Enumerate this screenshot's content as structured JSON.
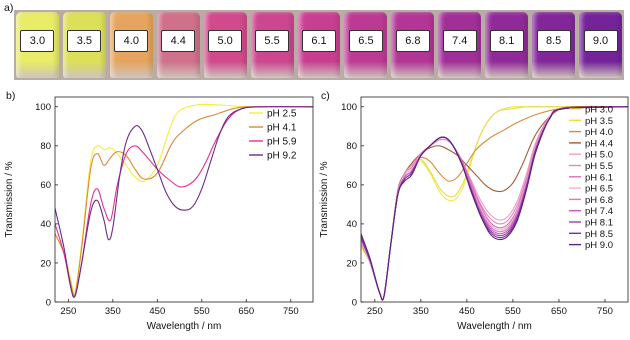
{
  "photo": {
    "panel_letter": "a)",
    "vials": [
      {
        "label": "3.0",
        "color": "#e8ec66"
      },
      {
        "label": "3.5",
        "color": "#dcdf58"
      },
      {
        "label": "4.0",
        "color": "#e6a45e"
      },
      {
        "label": "4.4",
        "color": "#d0708a"
      },
      {
        "label": "5.0",
        "color": "#d04a8c"
      },
      {
        "label": "5.5",
        "color": "#cc4690"
      },
      {
        "label": "6.1",
        "color": "#c83f92"
      },
      {
        "label": "6.5",
        "color": "#bd3a94"
      },
      {
        "label": "6.8",
        "color": "#b33596"
      },
      {
        "label": "7.4",
        "color": "#a12f98"
      },
      {
        "label": "8.1",
        "color": "#912a99"
      },
      {
        "label": "8.5",
        "color": "#82279a"
      },
      {
        "label": "9.0",
        "color": "#74239a"
      }
    ]
  },
  "chart_data": [
    {
      "type": "line",
      "panel_letter": "b)",
      "xlabel": "Wavelength / nm",
      "ylabel": "Transmission / %",
      "xlim": [
        220,
        800
      ],
      "ylim": [
        0,
        105
      ],
      "xticks": [
        250,
        350,
        450,
        550,
        650,
        750
      ],
      "yticks": [
        0,
        20,
        40,
        60,
        80,
        100
      ],
      "grid": false,
      "legend_position": "right",
      "series": [
        {
          "name": "pH 2.5",
          "color": "#f4ee3a",
          "x": [
            220,
            240,
            255,
            265,
            280,
            300,
            315,
            330,
            345,
            360,
            380,
            400,
            420,
            450,
            480,
            500,
            540,
            580,
            650,
            700,
            800
          ],
          "y": [
            35,
            25,
            12,
            5,
            30,
            72,
            80,
            78,
            79,
            76,
            70,
            64,
            62,
            70,
            90,
            98,
            101,
            101,
            100,
            100,
            100
          ]
        },
        {
          "name": "pH 4.1",
          "color": "#d98a35",
          "x": [
            220,
            240,
            255,
            265,
            280,
            300,
            315,
            330,
            345,
            360,
            380,
            400,
            420,
            450,
            480,
            500,
            540,
            580,
            620,
            650,
            700,
            800
          ],
          "y": [
            35,
            25,
            10,
            4,
            28,
            68,
            76,
            70,
            74,
            77,
            75,
            68,
            63,
            66,
            80,
            86,
            93,
            96,
            99,
            100,
            100,
            100
          ]
        },
        {
          "name": "pH 5.9",
          "color": "#e0338f",
          "x": [
            220,
            240,
            255,
            265,
            280,
            300,
            315,
            330,
            345,
            360,
            380,
            400,
            420,
            450,
            480,
            500,
            520,
            540,
            560,
            580,
            610,
            640,
            680,
            800
          ],
          "y": [
            40,
            25,
            8,
            3,
            20,
            50,
            58,
            48,
            42,
            60,
            76,
            80,
            76,
            68,
            62,
            59,
            60,
            64,
            72,
            82,
            94,
            99,
            100,
            100
          ]
        },
        {
          "name": "pH 9.2",
          "color": "#6b2a8c",
          "x": [
            220,
            240,
            255,
            265,
            280,
            300,
            315,
            330,
            340,
            350,
            365,
            380,
            400,
            415,
            430,
            450,
            470,
            490,
            510,
            530,
            550,
            570,
            590,
            610,
            640,
            680,
            800
          ],
          "y": [
            48,
            28,
            8,
            3,
            20,
            46,
            52,
            42,
            32,
            38,
            64,
            82,
            90,
            88,
            80,
            68,
            56,
            49,
            47,
            49,
            58,
            72,
            86,
            95,
            99,
            100,
            100
          ]
        }
      ]
    },
    {
      "type": "line",
      "panel_letter": "c)",
      "xlabel": "Wavelength / nm",
      "ylabel": "Transmission / %",
      "xlim": [
        220,
        800
      ],
      "ylim": [
        0,
        105
      ],
      "xticks": [
        250,
        350,
        450,
        550,
        650,
        750
      ],
      "yticks": [
        0,
        20,
        40,
        60,
        80,
        100
      ],
      "grid": false,
      "legend_position": "right",
      "series": [
        {
          "name": "pH 3.0",
          "color": "#f3e940",
          "x": [
            220,
            240,
            260,
            270,
            285,
            300,
            315,
            330,
            350,
            370,
            395,
            420,
            440,
            460,
            480,
            500,
            520,
            550,
            580,
            620,
            660,
            800
          ],
          "y": [
            28,
            20,
            5,
            3,
            30,
            55,
            66,
            70,
            72,
            66,
            55,
            52,
            58,
            72,
            86,
            94,
            98,
            100,
            100,
            100,
            100,
            100
          ]
        },
        {
          "name": "pH 3.5",
          "color": "#e5dc4e",
          "x": [
            220,
            240,
            260,
            270,
            285,
            300,
            315,
            330,
            350,
            370,
            395,
            420,
            440,
            460,
            480,
            500,
            520,
            550,
            580,
            620,
            660,
            800
          ],
          "y": [
            29,
            20,
            5,
            3,
            30,
            56,
            66,
            70,
            73,
            67,
            57,
            54,
            60,
            73,
            86,
            94,
            98,
            99,
            100,
            100,
            100,
            100
          ]
        },
        {
          "name": "pH 4.0",
          "color": "#d48d3c",
          "x": [
            220,
            240,
            260,
            270,
            285,
            300,
            315,
            330,
            350,
            370,
            390,
            410,
            430,
            450,
            470,
            500,
            530,
            560,
            600,
            650,
            700,
            800
          ],
          "y": [
            30,
            20,
            5,
            3,
            30,
            57,
            66,
            70,
            74,
            72,
            66,
            62,
            64,
            71,
            78,
            84,
            88,
            92,
            96,
            99,
            100,
            100
          ]
        },
        {
          "name": "pH 4.4",
          "color": "#a25c33",
          "x": [
            220,
            240,
            260,
            270,
            285,
            300,
            315,
            330,
            350,
            370,
            390,
            410,
            430,
            450,
            470,
            490,
            510,
            530,
            550,
            570,
            600,
            640,
            680,
            800
          ],
          "y": [
            32,
            20,
            5,
            3,
            30,
            57,
            66,
            71,
            76,
            79,
            80,
            78,
            75,
            70,
            65,
            60,
            57,
            57,
            61,
            70,
            86,
            97,
            100,
            100
          ]
        },
        {
          "name": "pH 5.0",
          "color": "#ef9ec9",
          "x": [
            220,
            240,
            260,
            270,
            285,
            300,
            315,
            330,
            350,
            370,
            390,
            405,
            420,
            440,
            460,
            480,
            500,
            520,
            540,
            560,
            580,
            600,
            630,
            660,
            800
          ],
          "y": [
            30,
            20,
            5,
            3,
            30,
            56,
            66,
            70,
            76,
            80,
            83,
            83,
            80,
            72,
            62,
            52,
            45,
            42,
            44,
            52,
            66,
            82,
            95,
            99,
            100
          ]
        },
        {
          "name": "pH 5.5",
          "color": "#e487c0",
          "x": [
            220,
            240,
            260,
            270,
            285,
            300,
            315,
            330,
            350,
            370,
            390,
            405,
            420,
            440,
            460,
            480,
            500,
            520,
            540,
            560,
            580,
            600,
            630,
            660,
            800
          ],
          "y": [
            30,
            20,
            5,
            3,
            30,
            56,
            66,
            69,
            76,
            80,
            83,
            83,
            80,
            72,
            61,
            50,
            43,
            40,
            42,
            50,
            64,
            81,
            95,
            99,
            100
          ]
        },
        {
          "name": "pH 6.1",
          "color": "#db6cb5",
          "x": [
            220,
            240,
            260,
            270,
            285,
            300,
            315,
            330,
            350,
            370,
            390,
            405,
            420,
            440,
            460,
            480,
            500,
            520,
            540,
            560,
            580,
            600,
            630,
            660,
            800
          ],
          "y": [
            31,
            20,
            5,
            3,
            30,
            56,
            65,
            68,
            75,
            80,
            84,
            84,
            80,
            72,
            60,
            49,
            41,
            38,
            40,
            48,
            63,
            80,
            94,
            99,
            100
          ]
        },
        {
          "name": "pH 6.5",
          "color": "#f0b0d6",
          "x": [
            220,
            240,
            260,
            270,
            285,
            300,
            315,
            330,
            350,
            370,
            390,
            405,
            420,
            440,
            460,
            480,
            500,
            520,
            540,
            560,
            580,
            600,
            630,
            660,
            800
          ],
          "y": [
            31,
            20,
            5,
            3,
            30,
            56,
            65,
            68,
            75,
            80,
            84,
            84,
            80,
            71,
            59,
            48,
            40,
            37,
            39,
            47,
            62,
            80,
            94,
            99,
            100
          ]
        },
        {
          "name": "pH 6.8",
          "color": "#d37bc6",
          "x": [
            220,
            240,
            260,
            270,
            285,
            300,
            315,
            330,
            350,
            370,
            390,
            405,
            420,
            440,
            460,
            480,
            500,
            520,
            540,
            560,
            580,
            600,
            630,
            660,
            800
          ],
          "y": [
            32,
            21,
            5,
            3,
            30,
            56,
            64,
            67,
            75,
            80,
            84,
            84,
            80,
            71,
            59,
            47,
            39,
            36,
            38,
            46,
            61,
            79,
            94,
            99,
            100
          ]
        },
        {
          "name": "pH 7.4",
          "color": "#c45ab8",
          "x": [
            220,
            240,
            260,
            270,
            285,
            300,
            315,
            330,
            350,
            370,
            390,
            405,
            420,
            440,
            460,
            480,
            500,
            520,
            540,
            560,
            580,
            600,
            630,
            660,
            800
          ],
          "y": [
            32,
            21,
            5,
            3,
            30,
            55,
            64,
            67,
            75,
            80,
            84,
            84,
            80,
            71,
            58,
            46,
            38,
            35,
            37,
            45,
            60,
            79,
            94,
            99,
            100
          ]
        },
        {
          "name": "pH 8.1",
          "color": "#9c3fa8",
          "x": [
            220,
            240,
            260,
            270,
            285,
            300,
            315,
            330,
            350,
            370,
            390,
            405,
            420,
            440,
            460,
            480,
            500,
            520,
            540,
            560,
            580,
            600,
            630,
            660,
            800
          ],
          "y": [
            33,
            21,
            5,
            3,
            30,
            55,
            63,
            66,
            75,
            80,
            84,
            84,
            80,
            70,
            57,
            45,
            37,
            34,
            36,
            44,
            60,
            78,
            94,
            99,
            100
          ]
        },
        {
          "name": "pH 8.5",
          "color": "#7d2f98",
          "x": [
            220,
            240,
            260,
            270,
            285,
            300,
            315,
            330,
            350,
            370,
            390,
            405,
            420,
            440,
            460,
            480,
            500,
            520,
            540,
            560,
            580,
            600,
            630,
            660,
            800
          ],
          "y": [
            34,
            21,
            5,
            3,
            30,
            55,
            63,
            66,
            75,
            80,
            84,
            84,
            80,
            70,
            57,
            44,
            36,
            33,
            35,
            43,
            59,
            78,
            94,
            99,
            100
          ]
        },
        {
          "name": "pH 9.0",
          "color": "#5a2480",
          "x": [
            220,
            240,
            260,
            270,
            285,
            300,
            315,
            330,
            350,
            370,
            390,
            405,
            420,
            440,
            460,
            480,
            500,
            520,
            540,
            560,
            580,
            600,
            630,
            660,
            800
          ],
          "y": [
            35,
            22,
            5,
            3,
            30,
            55,
            62,
            65,
            75,
            80,
            84,
            84,
            80,
            70,
            56,
            44,
            35,
            32,
            34,
            42,
            58,
            77,
            94,
            99,
            100
          ]
        }
      ]
    }
  ]
}
